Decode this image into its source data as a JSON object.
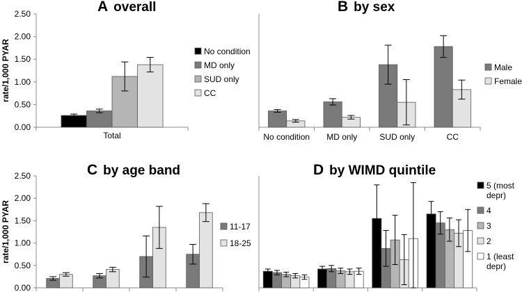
{
  "colors": {
    "black": "#000000",
    "dark_gray": "#7a7a7a",
    "mid_gray": "#b5b5b5",
    "light_gray": "#e3e3e3",
    "white": "#ffffff",
    "axis": "#888888",
    "error_bar": "#000000"
  },
  "chart_data": [
    {
      "panel_letter": "A",
      "title": "overall",
      "type": "bar",
      "ylabel": "rate/1,000 PYAR",
      "ylim": [
        0,
        2.5
      ],
      "yticks": [
        "0.00",
        "0.50",
        "1.00",
        "1.50",
        "2.00",
        "2.50"
      ],
      "categories": [
        "Total"
      ],
      "legend_position": "right",
      "series": [
        {
          "name": "No condition",
          "color": "black",
          "values": [
            0.26
          ],
          "err": [
            0.03
          ]
        },
        {
          "name": "MD only",
          "color": "dark_gray",
          "values": [
            0.36
          ],
          "err": [
            0.04
          ]
        },
        {
          "name": "SUD only",
          "color": "mid_gray",
          "values": [
            1.12
          ],
          "err": [
            0.32
          ]
        },
        {
          "name": "CC",
          "color": "light_gray",
          "values": [
            1.38
          ],
          "err": [
            0.16
          ]
        }
      ]
    },
    {
      "panel_letter": "B",
      "title": "by sex",
      "type": "bar",
      "ylabel": "",
      "ylim": [
        0,
        2.5
      ],
      "yticks": [],
      "categories": [
        "No condition",
        "MD only",
        "SUD only",
        "CC"
      ],
      "legend_position": "right",
      "series": [
        {
          "name": "Male",
          "color": "dark_gray",
          "values": [
            0.36,
            0.56,
            1.38,
            1.78
          ],
          "err": [
            0.03,
            0.07,
            0.43,
            0.24
          ]
        },
        {
          "name": "Female",
          "color": "light_gray",
          "values": [
            0.14,
            0.22,
            0.55,
            0.83
          ],
          "err": [
            0.03,
            0.04,
            0.5,
            0.21
          ]
        }
      ]
    },
    {
      "panel_letter": "C",
      "title": "by age band",
      "type": "bar",
      "ylabel": "rate/1,000 PYAR",
      "ylim": [
        0,
        2.5
      ],
      "yticks": [
        "0.00",
        "0.50",
        "1.00",
        "1.50",
        "2.00",
        "2.50"
      ],
      "categories": [
        "",
        "",
        "",
        ""
      ],
      "legend_position": "right",
      "series": [
        {
          "name": "11-17",
          "color": "dark_gray",
          "values": [
            0.21,
            0.27,
            0.7,
            0.75
          ],
          "err": [
            0.04,
            0.05,
            0.46,
            0.22
          ]
        },
        {
          "name": "18-25",
          "color": "light_gray",
          "values": [
            0.3,
            0.41,
            1.35,
            1.68
          ],
          "err": [
            0.04,
            0.05,
            0.47,
            0.2
          ]
        }
      ]
    },
    {
      "panel_letter": "D",
      "title": "by WIMD quintile",
      "type": "bar",
      "ylabel": "",
      "ylim": [
        0,
        2.5
      ],
      "yticks": [],
      "categories": [
        "",
        "",
        "",
        ""
      ],
      "legend_position": "right",
      "series": [
        {
          "name": "5 (most depr)",
          "color": "black",
          "values": [
            0.37,
            0.42,
            1.55,
            1.65
          ],
          "err": [
            0.05,
            0.06,
            0.75,
            0.28
          ]
        },
        {
          "name": "4",
          "color": "dark_gray",
          "values": [
            0.34,
            0.43,
            0.88,
            1.45
          ],
          "err": [
            0.05,
            0.07,
            0.4,
            0.25
          ]
        },
        {
          "name": "3",
          "color": "mid_gray",
          "values": [
            0.3,
            0.38,
            1.07,
            1.3
          ],
          "err": [
            0.05,
            0.06,
            0.55,
            0.26
          ]
        },
        {
          "name": "2",
          "color": "light_gray",
          "values": [
            0.27,
            0.36,
            0.63,
            1.22
          ],
          "err": [
            0.05,
            0.06,
            0.56,
            0.3
          ]
        },
        {
          "name": "1 (least depr)",
          "color": "white",
          "values": [
            0.24,
            0.37,
            1.1,
            1.28
          ],
          "err": [
            0.05,
            0.07,
            1.25,
            0.47
          ]
        }
      ]
    }
  ]
}
